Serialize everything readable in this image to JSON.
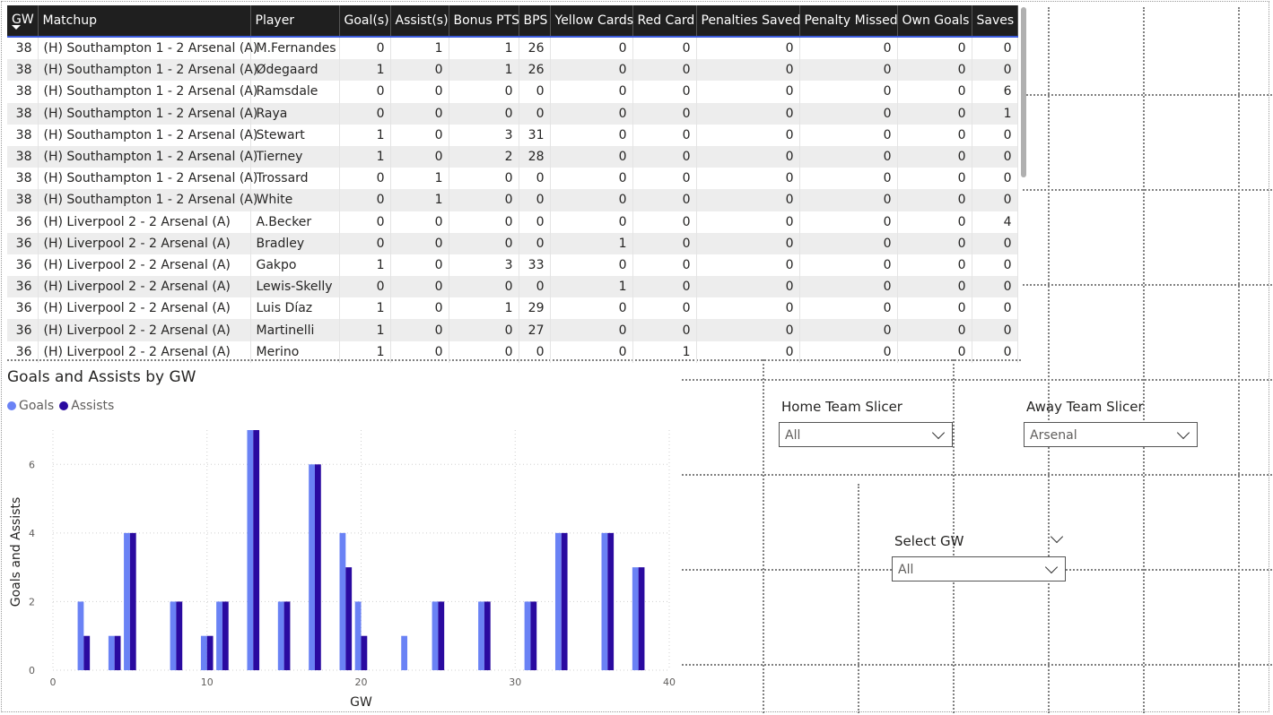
{
  "table": {
    "columns": [
      "GW",
      "Matchup",
      "Player",
      "Goal(s)",
      "Assist(s)",
      "Bonus PTS",
      "BPS",
      "Yellow Cards",
      "Red Card",
      "Penalties Saved",
      "Penalty Missed",
      "Own Goals",
      "Saves"
    ],
    "rows": [
      [
        "38",
        "(H) Southampton 1 - 2 Arsenal (A)",
        "M.Fernandes",
        "0",
        "1",
        "1",
        "26",
        "0",
        "0",
        "0",
        "0",
        "0",
        "0"
      ],
      [
        "38",
        "(H) Southampton 1 - 2 Arsenal (A)",
        "Ødegaard",
        "1",
        "0",
        "1",
        "26",
        "0",
        "0",
        "0",
        "0",
        "0",
        "0"
      ],
      [
        "38",
        "(H) Southampton 1 - 2 Arsenal (A)",
        "Ramsdale",
        "0",
        "0",
        "0",
        "0",
        "0",
        "0",
        "0",
        "0",
        "0",
        "6"
      ],
      [
        "38",
        "(H) Southampton 1 - 2 Arsenal (A)",
        "Raya",
        "0",
        "0",
        "0",
        "0",
        "0",
        "0",
        "0",
        "0",
        "0",
        "1"
      ],
      [
        "38",
        "(H) Southampton 1 - 2 Arsenal (A)",
        "Stewart",
        "1",
        "0",
        "3",
        "31",
        "0",
        "0",
        "0",
        "0",
        "0",
        "0"
      ],
      [
        "38",
        "(H) Southampton 1 - 2 Arsenal (A)",
        "Tierney",
        "1",
        "0",
        "2",
        "28",
        "0",
        "0",
        "0",
        "0",
        "0",
        "0"
      ],
      [
        "38",
        "(H) Southampton 1 - 2 Arsenal (A)",
        "Trossard",
        "0",
        "1",
        "0",
        "0",
        "0",
        "0",
        "0",
        "0",
        "0",
        "0"
      ],
      [
        "38",
        "(H) Southampton 1 - 2 Arsenal (A)",
        "White",
        "0",
        "1",
        "0",
        "0",
        "0",
        "0",
        "0",
        "0",
        "0",
        "0"
      ],
      [
        "36",
        "(H) Liverpool 2 - 2 Arsenal (A)",
        "A.Becker",
        "0",
        "0",
        "0",
        "0",
        "0",
        "0",
        "0",
        "0",
        "0",
        "4"
      ],
      [
        "36",
        "(H) Liverpool 2 - 2 Arsenal (A)",
        "Bradley",
        "0",
        "0",
        "0",
        "0",
        "1",
        "0",
        "0",
        "0",
        "0",
        "0"
      ],
      [
        "36",
        "(H) Liverpool 2 - 2 Arsenal (A)",
        "Gakpo",
        "1",
        "0",
        "3",
        "33",
        "0",
        "0",
        "0",
        "0",
        "0",
        "0"
      ],
      [
        "36",
        "(H) Liverpool 2 - 2 Arsenal (A)",
        "Lewis-Skelly",
        "0",
        "0",
        "0",
        "0",
        "1",
        "0",
        "0",
        "0",
        "0",
        "0"
      ],
      [
        "36",
        "(H) Liverpool 2 - 2 Arsenal (A)",
        "Luis Díaz",
        "1",
        "0",
        "1",
        "29",
        "0",
        "0",
        "0",
        "0",
        "0",
        "0"
      ],
      [
        "36",
        "(H) Liverpool 2 - 2 Arsenal (A)",
        "Martinelli",
        "1",
        "0",
        "0",
        "27",
        "0",
        "0",
        "0",
        "0",
        "0",
        "0"
      ],
      [
        "36",
        "(H) Liverpool 2 - 2 Arsenal (A)",
        "Merino",
        "1",
        "0",
        "0",
        "0",
        "0",
        "1",
        "0",
        "0",
        "0",
        "0"
      ]
    ]
  },
  "slicers": {
    "home": {
      "label": "Home Team Slicer",
      "value": "All"
    },
    "away": {
      "label": "Away Team Slicer",
      "value": "Arsenal"
    },
    "gw": {
      "label": "Select GW",
      "value": "All"
    }
  },
  "chart_data": {
    "type": "bar",
    "title": "Goals and Assists by GW",
    "xlabel": "GW",
    "ylabel": "Goals and Assists",
    "xlim": [
      0,
      40
    ],
    "ylim": [
      0,
      7
    ],
    "xticks": [
      0,
      10,
      20,
      30,
      40
    ],
    "yticks": [
      0,
      2,
      4,
      6
    ],
    "legend_position": "top-left",
    "grid": true,
    "x": [
      2,
      4,
      5,
      8,
      10,
      11,
      13,
      15,
      17,
      19,
      20,
      23,
      25,
      28,
      31,
      33,
      36,
      38
    ],
    "series": [
      {
        "name": "Goals",
        "color": "#6a82f5",
        "values": [
          2,
          1,
          4,
          2,
          1,
          2,
          7,
          2,
          6,
          4,
          2,
          1,
          2,
          2,
          2,
          4,
          4,
          3
        ]
      },
      {
        "name": "Assists",
        "color": "#2a0aa0",
        "values": [
          1,
          1,
          4,
          2,
          1,
          2,
          7,
          2,
          6,
          3,
          1,
          0,
          2,
          2,
          2,
          4,
          4,
          3
        ]
      }
    ]
  }
}
